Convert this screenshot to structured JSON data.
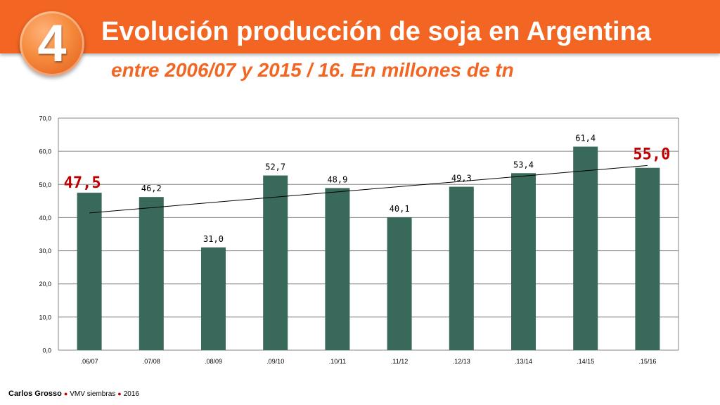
{
  "header": {
    "badge_number": "4",
    "title": "Evolución producción de soja en Argentina",
    "subtitle": "entre 2006/07 y 2015 / 16. En millones de tn"
  },
  "footer": {
    "author": "Carlos Grosso",
    "event": "VMV siembras",
    "year": "2016"
  },
  "colors": {
    "header": "#f26522",
    "bar": "#39695a",
    "highlight": "#c00000",
    "grid": "#868686"
  },
  "chart_data": {
    "type": "bar",
    "title": "",
    "xlabel": "",
    "ylabel": "",
    "categories": [
      ".06/07",
      ".07/08",
      ".08/09",
      ".09/10",
      ".10/11",
      ".11/12",
      ".12/13",
      ".13/14",
      ".14/15",
      ".15/16"
    ],
    "values": [
      47.5,
      46.2,
      31.0,
      52.7,
      48.9,
      40.1,
      49.3,
      53.4,
      61.4,
      55.0
    ],
    "data_labels": [
      "47,5",
      "46,2",
      "31,0",
      "52,7",
      "48,9",
      "40,1",
      "49,3",
      "53,4",
      "61,4",
      "55,0"
    ],
    "highlighted": [
      ".06/07",
      ".15/16"
    ],
    "ylim": [
      0,
      70
    ],
    "yticks": [
      0,
      10,
      20,
      30,
      40,
      50,
      60,
      70
    ],
    "ytick_labels": [
      "0,0",
      "10,0",
      "20,0",
      "30,0",
      "40,0",
      "50,0",
      "60,0",
      "70,0"
    ],
    "grid": true,
    "trendline": {
      "type": "linear",
      "start": 41.4,
      "end": 55.7
    }
  }
}
